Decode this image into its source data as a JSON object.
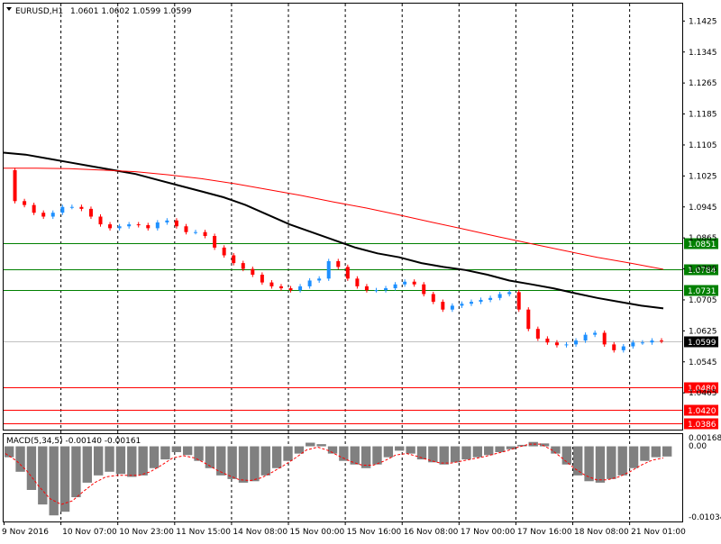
{
  "header": {
    "symbol": "EURUSD,H1",
    "ohlc": "1.0601 1.0602 1.0599 1.0599"
  },
  "macd": {
    "label": "MACD(5,34,5) -0.00140 -0.00161",
    "top_label": "0.00168",
    "zero_label": "0.00",
    "bottom_label": "-0.01034"
  },
  "colors": {
    "background": "#ffffff",
    "bull": "#1e90ff",
    "bear": "#ff0000",
    "ma_fast": "#000000",
    "ma_slow": "#ff0000",
    "support_resistance_green": "#008000",
    "support_red": "#ff0000",
    "grid": "#000000",
    "hist": "#808080",
    "signal": "#ff0000"
  },
  "chart_data": {
    "type": "candlestick",
    "symbol": "EURUSD",
    "timeframe": "H1",
    "ylim": [
      1.037,
      1.147
    ],
    "y_ticks": [
      "1.1425",
      "1.1345",
      "1.1265",
      "1.1185",
      "1.1105",
      "1.1025",
      "1.0945",
      "1.0865",
      "1.0785",
      "1.0705",
      "1.0625",
      "1.0545",
      "1.0465"
    ],
    "x_labels": [
      "9 Nov 2016",
      "10 Nov 07:00",
      "10 Nov 23:00",
      "11 Nov 15:00",
      "14 Nov 08:00",
      "15 Nov 00:00",
      "15 Nov 16:00",
      "16 Nov 08:00",
      "17 Nov 00:00",
      "17 Nov 16:00",
      "18 Nov 08:00",
      "21 Nov 01:00"
    ],
    "close_path": [
      1.104,
      1.096,
      1.095,
      1.093,
      1.092,
      1.093,
      1.0945,
      1.0945,
      1.094,
      1.092,
      1.09,
      1.089,
      1.0895,
      1.09,
      1.0898,
      1.089,
      1.0905,
      1.091,
      1.0895,
      1.088,
      1.088,
      1.087,
      1.084,
      1.082,
      1.08,
      1.0785,
      1.077,
      1.075,
      1.074,
      1.0735,
      1.073,
      1.074,
      1.0755,
      1.076,
      1.0805,
      1.079,
      1.076,
      1.074,
      1.073,
      1.073,
      1.0735,
      1.0745,
      1.0752,
      1.0745,
      1.072,
      1.07,
      1.068,
      1.069,
      1.0695,
      1.07,
      1.0705,
      1.071,
      1.072,
      1.0725,
      1.068,
      1.063,
      1.0605,
      1.0595,
      1.0588,
      1.059,
      1.06,
      1.0615,
      1.062,
      1.059,
      1.0575,
      1.0585,
      1.0595,
      1.0595,
      1.06,
      1.0599
    ],
    "series": [
      {
        "name": "",
        "values": [
          1.1085,
          1.108,
          1.107,
          1.106,
          1.105,
          1.104,
          1.103,
          1.1015,
          1.1,
          1.0985,
          1.097,
          1.095,
          1.0925,
          1.09,
          1.088,
          1.086,
          1.084,
          1.0825,
          1.0815,
          1.08,
          1.079,
          1.0782,
          1.077,
          1.0755,
          1.0745,
          1.0735,
          1.0722,
          1.071,
          1.07,
          1.069,
          1.0683
        ]
      },
      {
        "name": "",
        "values": [
          1.1045,
          1.1045,
          1.1044,
          1.104,
          1.1036,
          1.1028,
          1.1018,
          1.1005,
          1.099,
          1.0975,
          1.0958,
          1.0942,
          1.0924,
          1.0905,
          1.0887,
          1.0868,
          1.085,
          1.0832,
          1.0815,
          1.08,
          1.0784
        ]
      }
    ],
    "hlines": [
      {
        "value": 1.0851,
        "label": "1.0851",
        "color": "green"
      },
      {
        "value": 1.0784,
        "label": "1.0784",
        "color": "green"
      },
      {
        "value": 1.0731,
        "label": "1.0731",
        "color": "green"
      },
      {
        "value": 1.048,
        "label": "1.0480",
        "color": "red"
      },
      {
        "value": 1.042,
        "label": "1.0420",
        "color": "red"
      },
      {
        "value": 1.0386,
        "label": "1.0386",
        "color": "red"
      }
    ],
    "last_price": {
      "value": 1.0599,
      "label": "1.0599"
    },
    "macd_ylim": [
      -0.01034,
      0.00168
    ],
    "macd_hist": [
      -0.0015,
      -0.0035,
      -0.006,
      -0.008,
      -0.0095,
      -0.009,
      -0.007,
      -0.005,
      -0.004,
      -0.0035,
      -0.0038,
      -0.0042,
      -0.004,
      -0.003,
      -0.0018,
      -0.0008,
      -0.0012,
      -0.002,
      -0.003,
      -0.004,
      -0.0045,
      -0.005,
      -0.0048,
      -0.004,
      -0.003,
      -0.002,
      -0.001,
      0.0005,
      0.0003,
      -0.001,
      -0.002,
      -0.0025,
      -0.003,
      -0.0025,
      -0.0015,
      -0.0006,
      -0.001,
      -0.0018,
      -0.0022,
      -0.0025,
      -0.0022,
      -0.0018,
      -0.0015,
      -0.0012,
      -0.0008,
      -0.0004,
      0.0002,
      0.0006,
      0.0004,
      -0.001,
      -0.0025,
      -0.004,
      -0.0048,
      -0.005,
      -0.0045,
      -0.004,
      -0.003,
      -0.002,
      -0.0015,
      -0.0014
    ],
    "macd_signal": [
      -0.001,
      -0.002,
      -0.0035,
      -0.0055,
      -0.0072,
      -0.008,
      -0.0075,
      -0.0062,
      -0.005,
      -0.0042,
      -0.004,
      -0.004,
      -0.004,
      -0.0035,
      -0.0026,
      -0.0016,
      -0.0013,
      -0.0016,
      -0.0024,
      -0.0033,
      -0.004,
      -0.0046,
      -0.0047,
      -0.0043,
      -0.0035,
      -0.0026,
      -0.0016,
      -0.0005,
      -0.0001,
      -0.0006,
      -0.0014,
      -0.0021,
      -0.0026,
      -0.0026,
      -0.002,
      -0.0012,
      -0.001,
      -0.0014,
      -0.0019,
      -0.0023,
      -0.0023,
      -0.002,
      -0.0017,
      -0.0014,
      -0.001,
      -0.0006,
      -0.0001,
      0.0003,
      0.0003,
      -0.0005,
      -0.0017,
      -0.003,
      -0.004,
      -0.0046,
      -0.0046,
      -0.0042,
      -0.0035,
      -0.0026,
      -0.0019,
      -0.0016
    ]
  }
}
